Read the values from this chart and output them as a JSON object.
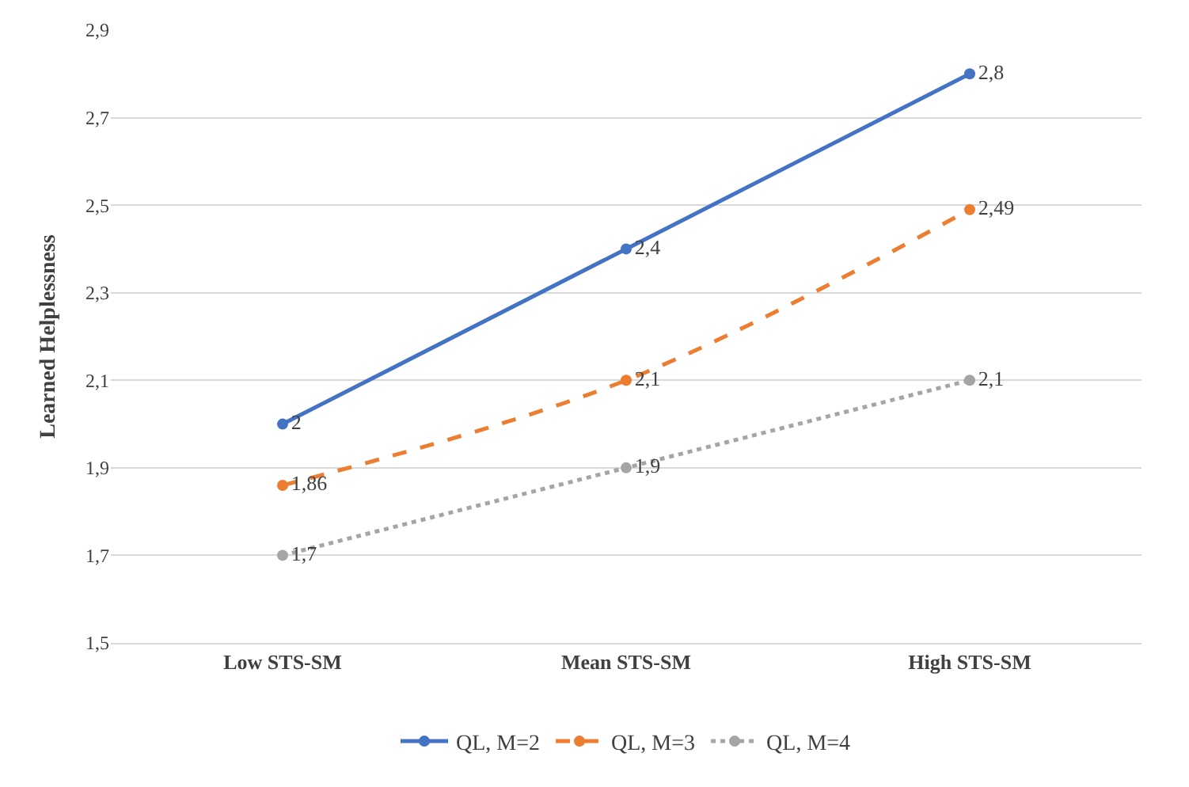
{
  "chart_data": {
    "type": "line",
    "ylabel": "Learned Helplessness",
    "categories": [
      "Low STS-SM",
      "Mean STS-SM",
      "High STS-SM"
    ],
    "series": [
      {
        "name": "QL, M=2",
        "color": "#4472c4",
        "line_style": "solid",
        "values": [
          2,
          2.4,
          2.8
        ],
        "value_labels": [
          "2",
          "2,4",
          "2,8"
        ]
      },
      {
        "name": "QL, M=3",
        "color": "#ed7d31",
        "line_style": "dashed",
        "values": [
          1.86,
          2.1,
          2.49
        ],
        "value_labels": [
          "1,86",
          "2,1",
          "2,49"
        ]
      },
      {
        "name": "QL, M=4",
        "color": "#a5a5a5",
        "line_style": "dotted",
        "values": [
          1.7,
          1.9,
          2.1
        ],
        "value_labels": [
          "1,7",
          "1,9",
          "2,1"
        ]
      }
    ],
    "ylim": [
      1.5,
      2.9
    ],
    "yticks": [
      {
        "value": 1.5,
        "label": "1,5"
      },
      {
        "value": 1.7,
        "label": "1,7"
      },
      {
        "value": 1.9,
        "label": "1,9"
      },
      {
        "value": 2.1,
        "label": "2,1"
      },
      {
        "value": 2.3,
        "label": "2,3"
      },
      {
        "value": 2.5,
        "label": "2,5"
      },
      {
        "value": 2.7,
        "label": "2,7"
      },
      {
        "value": 2.9,
        "label": "2,9"
      }
    ],
    "grid": "y",
    "legend": "bottom",
    "marker": "circle"
  }
}
